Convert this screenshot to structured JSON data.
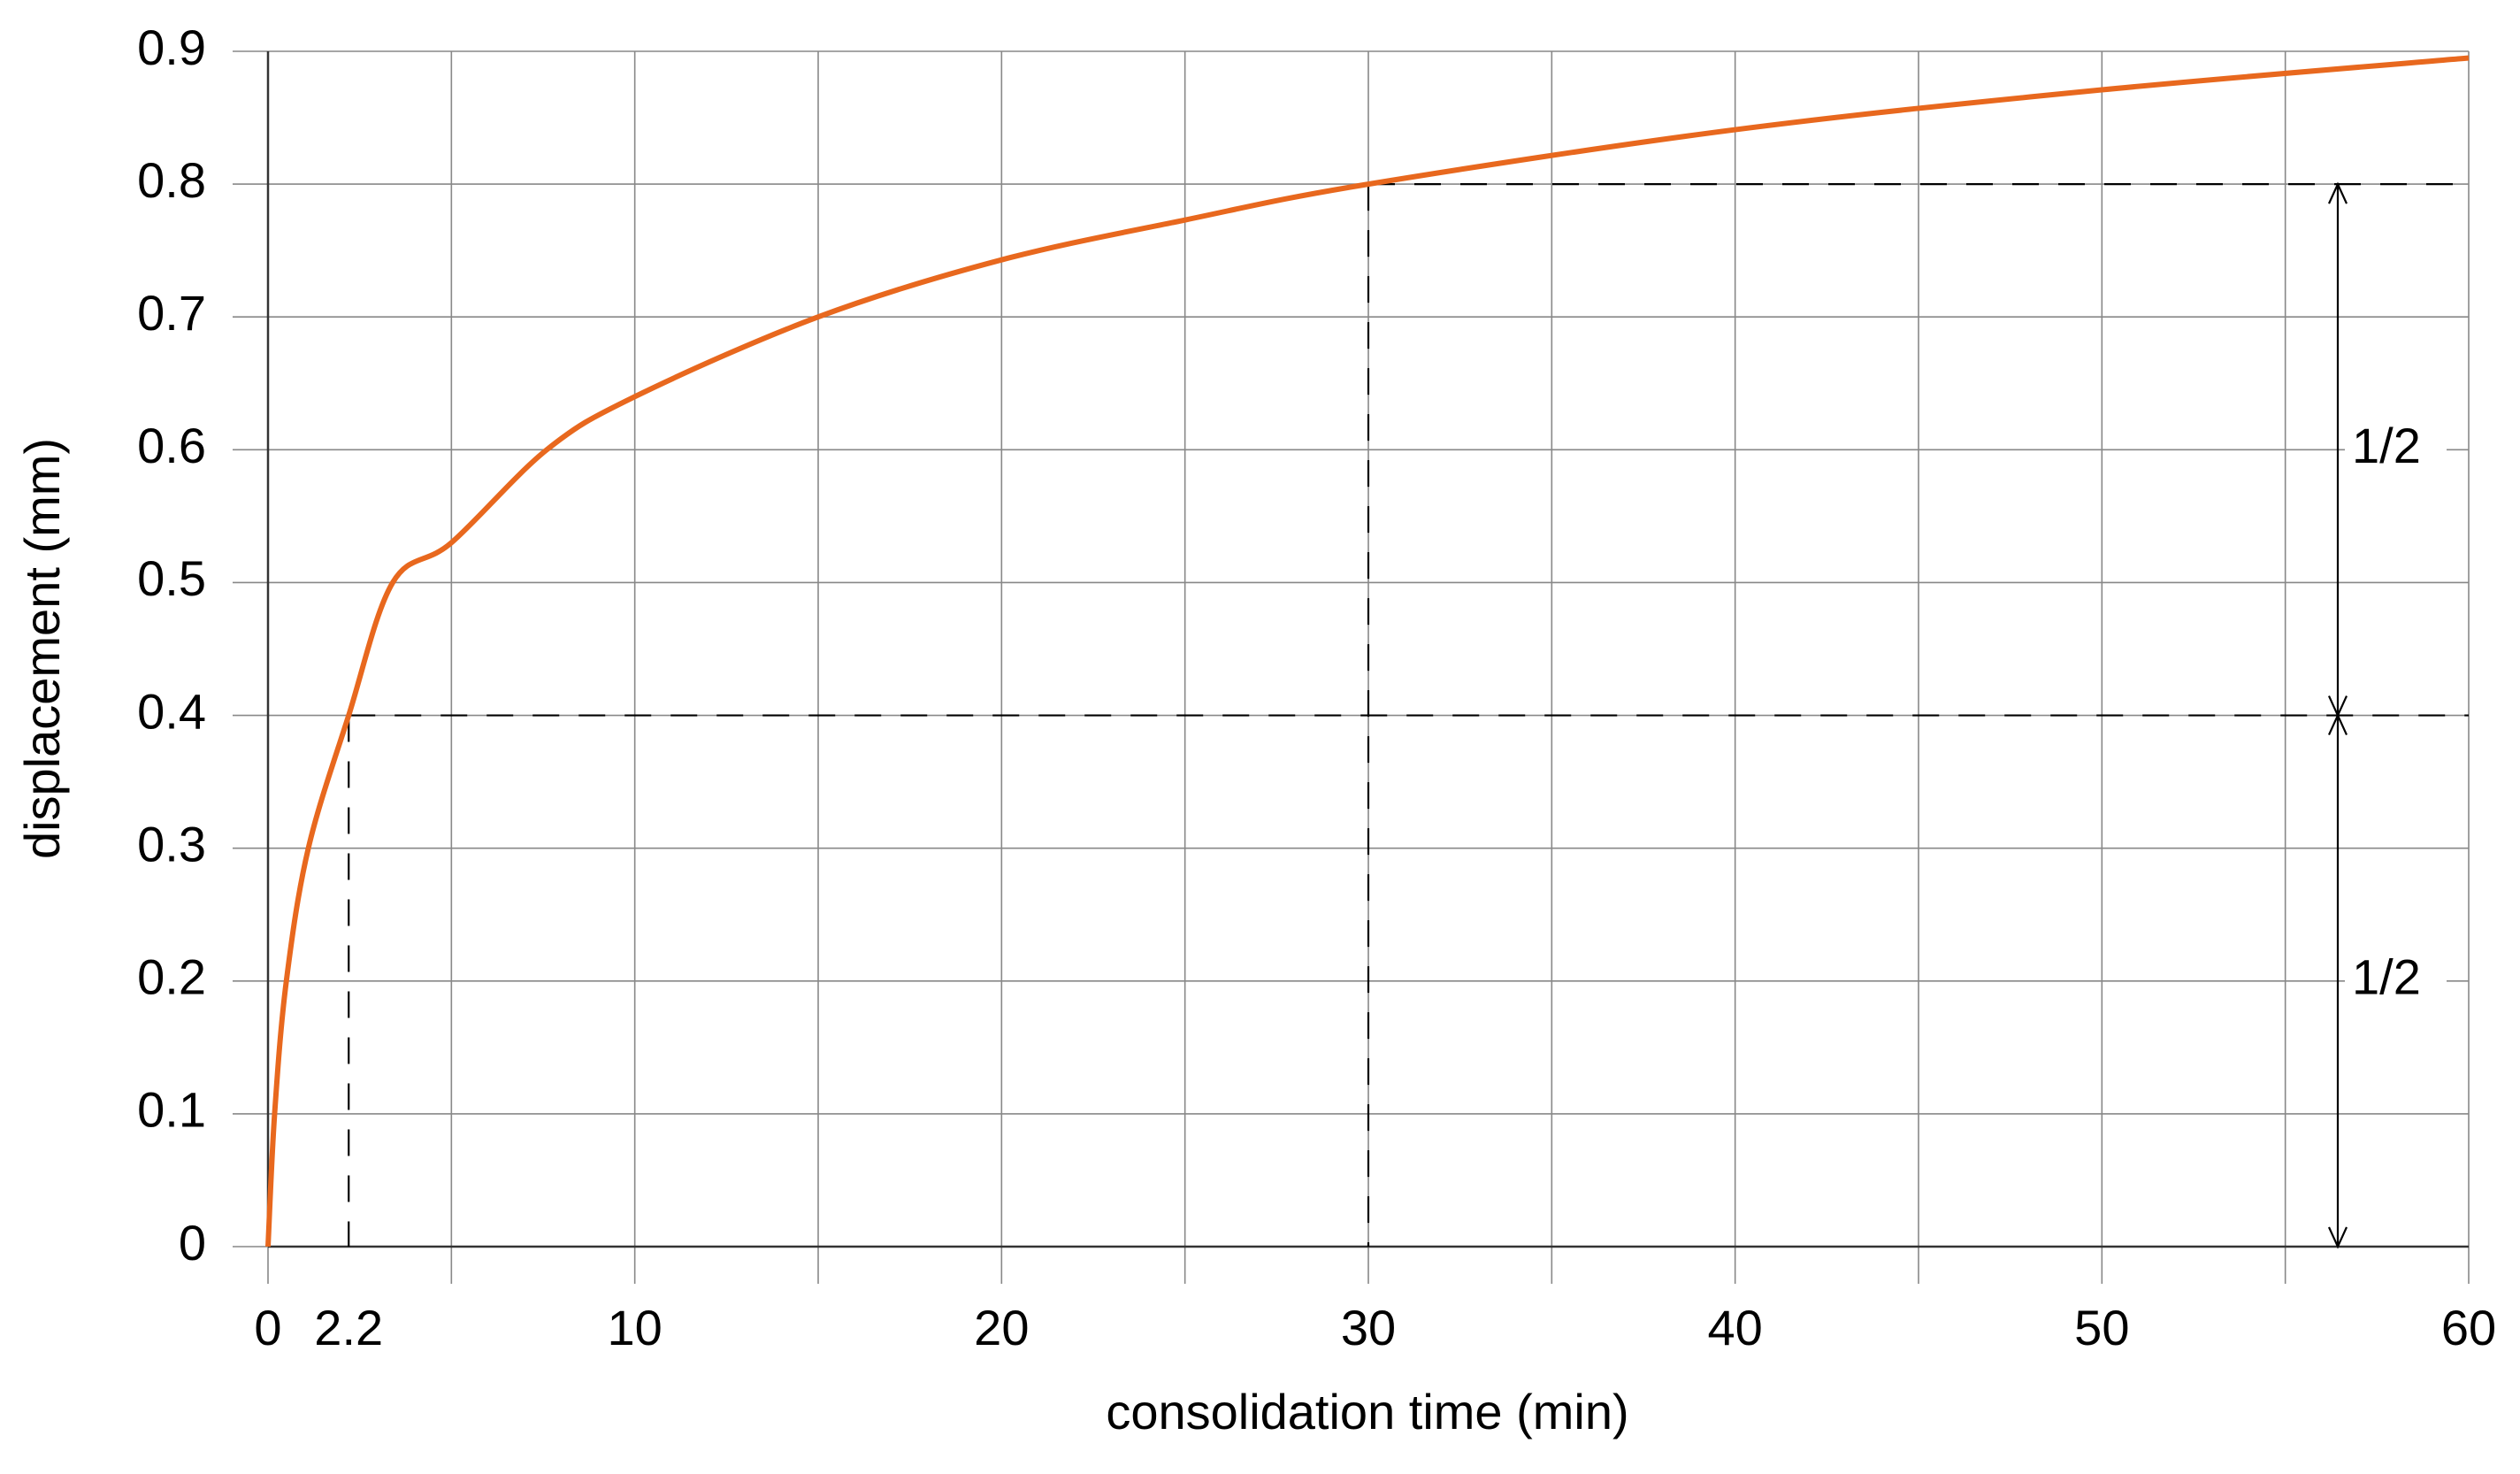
{
  "chart_data": {
    "type": "line",
    "xlabel": "consolidation time (min)",
    "ylabel": "displacement (mm)",
    "x": [
      0,
      0.18,
      0.5,
      1.1,
      2.2,
      3.4,
      5,
      7.6,
      10,
      15,
      20,
      25,
      30,
      40,
      50,
      60
    ],
    "series": [
      {
        "color": "#e8681e",
        "values": [
          0,
          0.1,
          0.2,
          0.3,
          0.4,
          0.5,
          0.53,
          0.6,
          0.64,
          0.7,
          0.743,
          0.773,
          0.8,
          0.841,
          0.871,
          0.895
        ]
      }
    ],
    "xlim": [
      0,
      60
    ],
    "ylim": [
      0,
      0.9
    ],
    "xticks": [
      0,
      2.2,
      10,
      20,
      30,
      40,
      50,
      60
    ],
    "xgrid": [
      0,
      5,
      10,
      15,
      20,
      25,
      30,
      35,
      40,
      45,
      50,
      55,
      60
    ],
    "yticks": [
      0,
      0.1,
      0.2,
      0.3,
      0.4,
      0.5,
      0.6,
      0.7,
      0.8,
      0.9
    ],
    "grid": true,
    "reference_points": [
      {
        "x": 2.2,
        "y": 0.4
      },
      {
        "x": 30,
        "y": 0.8
      }
    ],
    "annotations": [
      "1/2",
      "1/2"
    ]
  }
}
